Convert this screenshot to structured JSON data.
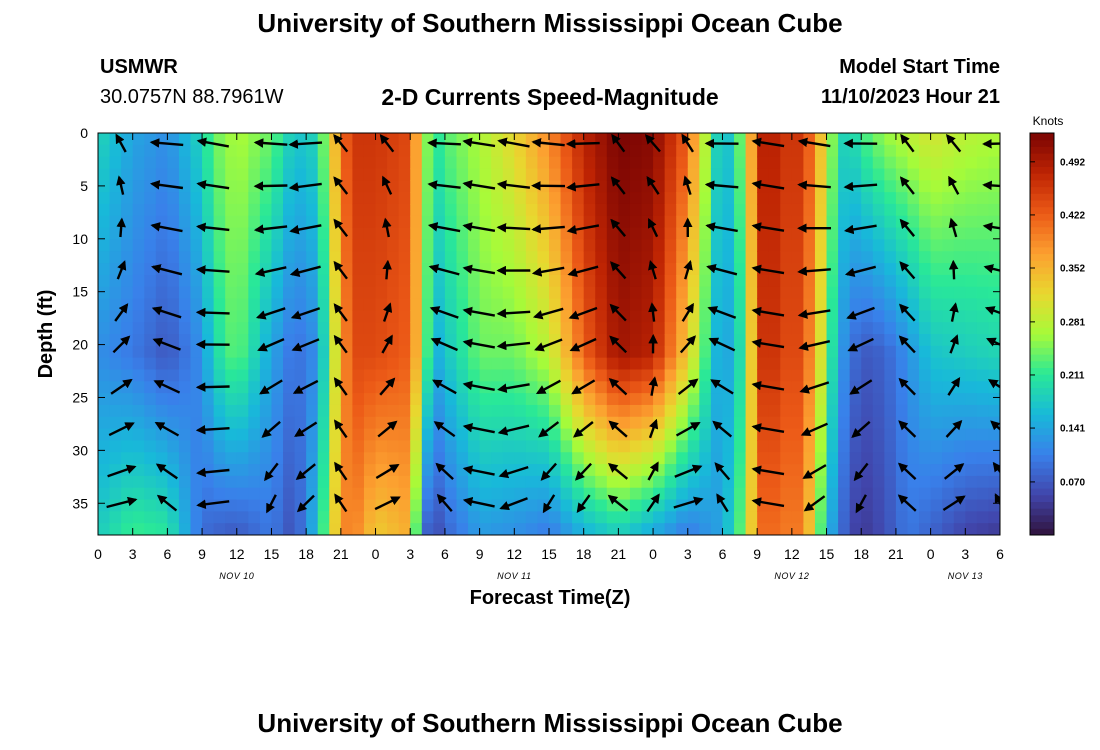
{
  "header": {
    "title": "University of Southern Mississippi Ocean Cube",
    "footer_title": "University of Southern Mississippi Ocean Cube",
    "station": "USMWR",
    "location": "30.0757N  88.7961W",
    "model_start_label": "Model Start Time",
    "model_start_value": "11/10/2023 Hour 21"
  },
  "chart_data": {
    "type": "heatmap",
    "title": "2-D Currents Speed-Magnitude",
    "xlabel": "Forecast Time(Z)",
    "ylabel": "Depth (ft)",
    "x_ticks": [
      "0",
      "3",
      "6",
      "9",
      "12",
      "15",
      "18",
      "21",
      "0",
      "3",
      "6",
      "9",
      "12",
      "15",
      "18",
      "21",
      "0",
      "3",
      "6",
      "9",
      "12",
      "15",
      "18",
      "21",
      "0",
      "3",
      "6"
    ],
    "x_range_hours": [
      0,
      78
    ],
    "day_labels": [
      {
        "label": "NOV 10",
        "hour": 12
      },
      {
        "label": "NOV 11",
        "hour": 36
      },
      {
        "label": "NOV 12",
        "hour": 60
      },
      {
        "label": "NOV 13",
        "hour": 75
      }
    ],
    "y_ticks": [
      "0",
      "5",
      "10",
      "15",
      "20",
      "25",
      "30",
      "35"
    ],
    "y_range_ft": [
      0,
      38
    ],
    "colorbar": {
      "title": "Knots",
      "tick_labels": [
        "0.070",
        "0.141",
        "0.211",
        "0.281",
        "0.352",
        "0.422",
        "0.492"
      ],
      "range_knots": [
        0.0,
        0.53
      ]
    },
    "speed_structure_knots": {
      "description": "Surface-to-bottom speed per forecast hour (piecewise profile)",
      "times_h": [
        0,
        3,
        6,
        9,
        10,
        12,
        15,
        17,
        19,
        21,
        22,
        24,
        27,
        28,
        29,
        30,
        33,
        36,
        39,
        42,
        45,
        48,
        51,
        54,
        56,
        57,
        58,
        59,
        61,
        63,
        64,
        65,
        66,
        68,
        70,
        72,
        75,
        78
      ],
      "surface": [
        0.19,
        0.14,
        0.12,
        0.19,
        0.24,
        0.27,
        0.24,
        0.17,
        0.19,
        0.4,
        0.46,
        0.46,
        0.44,
        0.3,
        0.2,
        0.23,
        0.27,
        0.32,
        0.39,
        0.48,
        0.53,
        0.52,
        0.42,
        0.14,
        0.27,
        0.46,
        0.5,
        0.46,
        0.46,
        0.3,
        0.2,
        0.18,
        0.22,
        0.26,
        0.28,
        0.3,
        0.28,
        0.27
      ],
      "mid": [
        0.12,
        0.1,
        0.07,
        0.12,
        0.19,
        0.24,
        0.14,
        0.09,
        0.12,
        0.36,
        0.44,
        0.44,
        0.42,
        0.3,
        0.14,
        0.17,
        0.24,
        0.24,
        0.28,
        0.42,
        0.5,
        0.48,
        0.33,
        0.12,
        0.22,
        0.44,
        0.48,
        0.44,
        0.44,
        0.26,
        0.14,
        0.1,
        0.07,
        0.08,
        0.12,
        0.17,
        0.18,
        0.19
      ],
      "bottom": [
        0.18,
        0.22,
        0.21,
        0.09,
        0.08,
        0.07,
        0.1,
        0.06,
        0.17,
        0.38,
        0.4,
        0.33,
        0.36,
        0.1,
        0.05,
        0.08,
        0.13,
        0.12,
        0.1,
        0.15,
        0.18,
        0.14,
        0.1,
        0.14,
        0.26,
        0.4,
        0.42,
        0.4,
        0.4,
        0.17,
        0.1,
        0.06,
        0.04,
        0.06,
        0.1,
        0.08,
        0.05,
        0.04
      ]
    },
    "vector_grid": {
      "hours": [
        2,
        6,
        10,
        15,
        18,
        21,
        25,
        30,
        33,
        36,
        39,
        42,
        45,
        48,
        51,
        54,
        58,
        62,
        66,
        70,
        74,
        78
      ],
      "depths_ft": [
        1,
        5,
        9,
        13,
        17,
        20,
        24,
        28,
        32,
        35
      ]
    }
  }
}
